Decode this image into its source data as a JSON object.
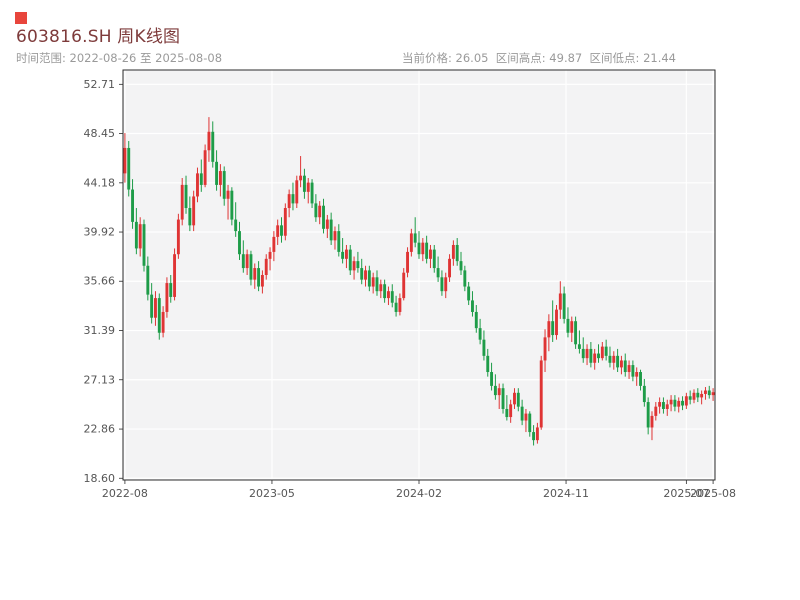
{
  "page": {
    "title": "603816.SH 周K线图",
    "subtitle_left": "时间范围: 2022-08-26 至 2025-08-08",
    "subtitle_right": "当前价格: 26.05  区间高点: 49.87  区间低点: 21.44"
  },
  "colors": {
    "up": "#df3434",
    "down": "#1e9c48",
    "plot_bg": "#f3f3f4",
    "grid": "#ffffff",
    "axis": "#2b2b2b",
    "tick_label": "#555555",
    "title": "#7e3b3b",
    "subtitle": "#9a9a9a",
    "marker": "#e8453c"
  },
  "chart_data": {
    "type": "candlestick",
    "title": "603816.SH 周K线图",
    "symbol": "603816.SH",
    "period": "weekly",
    "date_range": [
      "2022-08-26",
      "2025-08-08"
    ],
    "current_price": 26.05,
    "range_high": 49.87,
    "range_low": 21.44,
    "ylim": [
      18.45,
      53.95
    ],
    "grid": true,
    "y_ticks": [
      {
        "v": 52.71,
        "label": "52.71"
      },
      {
        "v": 48.45,
        "label": "48.45"
      },
      {
        "v": 44.18,
        "label": "44.18"
      },
      {
        "v": 39.92,
        "label": "39.92"
      },
      {
        "v": 35.66,
        "label": "35.66"
      },
      {
        "v": 31.39,
        "label": "31.39"
      },
      {
        "v": 27.13,
        "label": "27.13"
      },
      {
        "v": 22.86,
        "label": "22.86"
      },
      {
        "v": 18.6,
        "label": "18.60"
      }
    ],
    "x_ticks": [
      {
        "label": "2022-08",
        "week": 0
      },
      {
        "label": "2023-05",
        "week": 38.5
      },
      {
        "label": "2024-02",
        "week": 77
      },
      {
        "label": "2024-11",
        "week": 115.5
      },
      {
        "label": "2025-07",
        "week": 147
      },
      {
        "label": "2025-08",
        "week": 154
      }
    ],
    "candles": [
      [
        45.0,
        48.49,
        44.2,
        47.2
      ],
      [
        47.2,
        47.8,
        43.0,
        43.6
      ],
      [
        43.6,
        44.5,
        40.2,
        40.8
      ],
      [
        40.8,
        42.0,
        38.0,
        38.5
      ],
      [
        38.5,
        41.2,
        37.8,
        40.6
      ],
      [
        40.6,
        41.0,
        36.5,
        37.0
      ],
      [
        37.0,
        37.8,
        34.0,
        34.5
      ],
      [
        34.5,
        35.5,
        32.0,
        32.5
      ],
      [
        32.5,
        34.8,
        31.8,
        34.2
      ],
      [
        34.2,
        34.6,
        30.6,
        31.2
      ],
      [
        31.2,
        33.5,
        30.8,
        33.0
      ],
      [
        33.0,
        36.0,
        32.5,
        35.5
      ],
      [
        35.5,
        36.2,
        33.8,
        34.3
      ],
      [
        34.3,
        38.5,
        34.0,
        38.0
      ],
      [
        38.0,
        41.5,
        37.6,
        41.0
      ],
      [
        41.0,
        44.6,
        40.5,
        44.0
      ],
      [
        44.0,
        44.8,
        41.5,
        42.0
      ],
      [
        42.0,
        43.0,
        40.0,
        40.5
      ],
      [
        40.5,
        43.5,
        40.0,
        43.0
      ],
      [
        43.0,
        45.5,
        42.5,
        45.0
      ],
      [
        45.0,
        46.2,
        43.4,
        44.0
      ],
      [
        44.0,
        47.5,
        43.8,
        47.0
      ],
      [
        47.0,
        49.87,
        46.0,
        48.6
      ],
      [
        48.6,
        49.5,
        45.5,
        46.0
      ],
      [
        46.0,
        47.0,
        43.5,
        44.0
      ],
      [
        44.0,
        45.8,
        43.0,
        45.2
      ],
      [
        45.2,
        45.6,
        42.2,
        42.8
      ],
      [
        42.8,
        44.0,
        41.0,
        43.5
      ],
      [
        43.5,
        43.8,
        40.5,
        41.0
      ],
      [
        41.0,
        42.5,
        39.5,
        40.0
      ],
      [
        40.0,
        40.8,
        37.5,
        38.0
      ],
      [
        38.0,
        39.2,
        36.4,
        36.8
      ],
      [
        36.8,
        38.4,
        36.2,
        38.0
      ],
      [
        38.0,
        38.3,
        35.3,
        35.8
      ],
      [
        35.8,
        37.2,
        35.0,
        36.8
      ],
      [
        36.8,
        37.4,
        34.8,
        35.2
      ],
      [
        35.2,
        36.6,
        34.6,
        36.2
      ],
      [
        36.2,
        38.0,
        35.8,
        37.6
      ],
      [
        37.6,
        38.6,
        36.6,
        38.2
      ],
      [
        38.2,
        40.0,
        37.4,
        39.5
      ],
      [
        39.5,
        41.0,
        38.8,
        40.5
      ],
      [
        40.5,
        41.2,
        39.0,
        39.6
      ],
      [
        39.6,
        42.4,
        39.2,
        42.0
      ],
      [
        42.0,
        43.6,
        41.2,
        43.2
      ],
      [
        43.2,
        44.2,
        41.8,
        42.4
      ],
      [
        42.4,
        44.8,
        42.0,
        44.4
      ],
      [
        44.4,
        46.5,
        43.8,
        44.8
      ],
      [
        44.8,
        45.4,
        42.8,
        43.4
      ],
      [
        43.4,
        44.6,
        42.4,
        44.2
      ],
      [
        44.2,
        44.5,
        42.0,
        42.4
      ],
      [
        42.4,
        43.2,
        40.8,
        41.2
      ],
      [
        41.2,
        42.6,
        40.6,
        42.2
      ],
      [
        42.2,
        42.8,
        39.8,
        40.2
      ],
      [
        40.2,
        41.4,
        39.4,
        41.0
      ],
      [
        41.0,
        41.6,
        38.8,
        39.2
      ],
      [
        39.2,
        40.4,
        38.4,
        40.0
      ],
      [
        40.0,
        40.6,
        37.8,
        38.2
      ],
      [
        38.2,
        39.4,
        37.2,
        37.6
      ],
      [
        37.6,
        38.8,
        36.8,
        38.4
      ],
      [
        38.4,
        38.8,
        36.2,
        36.6
      ],
      [
        36.6,
        37.8,
        35.8,
        37.4
      ],
      [
        37.4,
        38.2,
        36.4,
        36.8
      ],
      [
        36.8,
        37.6,
        35.4,
        35.8
      ],
      [
        35.8,
        37.0,
        35.2,
        36.6
      ],
      [
        36.6,
        37.0,
        34.8,
        35.2
      ],
      [
        35.2,
        36.4,
        34.6,
        36.0
      ],
      [
        36.0,
        36.6,
        34.4,
        34.8
      ],
      [
        34.8,
        35.8,
        34.2,
        35.4
      ],
      [
        35.4,
        35.8,
        33.8,
        34.2
      ],
      [
        34.2,
        35.2,
        33.6,
        34.8
      ],
      [
        34.8,
        35.4,
        33.4,
        33.8
      ],
      [
        33.8,
        34.4,
        32.6,
        33.0
      ],
      [
        33.0,
        34.6,
        32.7,
        34.2
      ],
      [
        34.2,
        36.8,
        34.0,
        36.4
      ],
      [
        36.4,
        38.6,
        36.0,
        38.2
      ],
      [
        38.2,
        40.2,
        37.8,
        39.8
      ],
      [
        39.8,
        41.2,
        38.6,
        39.0
      ],
      [
        39.0,
        40.0,
        37.6,
        38.0
      ],
      [
        38.0,
        39.4,
        37.4,
        39.0
      ],
      [
        39.0,
        39.6,
        37.2,
        37.6
      ],
      [
        37.6,
        38.8,
        36.8,
        38.4
      ],
      [
        38.4,
        38.8,
        36.4,
        36.8
      ],
      [
        36.8,
        37.8,
        35.6,
        36.0
      ],
      [
        36.0,
        36.6,
        34.4,
        34.8
      ],
      [
        34.8,
        36.4,
        34.2,
        36.0
      ],
      [
        36.0,
        38.0,
        35.6,
        37.6
      ],
      [
        37.6,
        39.2,
        37.0,
        38.8
      ],
      [
        38.8,
        39.4,
        37.0,
        37.4
      ],
      [
        37.4,
        38.2,
        36.2,
        36.6
      ],
      [
        36.6,
        37.0,
        34.8,
        35.2
      ],
      [
        35.2,
        35.6,
        33.6,
        34.0
      ],
      [
        34.0,
        34.8,
        32.6,
        33.0
      ],
      [
        33.0,
        33.6,
        31.2,
        31.6
      ],
      [
        31.6,
        32.4,
        30.2,
        30.6
      ],
      [
        30.6,
        31.4,
        28.8,
        29.2
      ],
      [
        29.2,
        29.8,
        27.4,
        27.8
      ],
      [
        27.8,
        28.6,
        26.2,
        26.6
      ],
      [
        26.6,
        27.6,
        25.4,
        25.8
      ],
      [
        25.8,
        26.8,
        24.6,
        26.4
      ],
      [
        26.4,
        26.8,
        24.2,
        24.6
      ],
      [
        24.6,
        25.8,
        23.6,
        23.9
      ],
      [
        23.9,
        25.4,
        23.4,
        25.0
      ],
      [
        25.0,
        26.4,
        24.6,
        26.0
      ],
      [
        26.0,
        26.4,
        24.4,
        24.8
      ],
      [
        24.8,
        25.4,
        23.2,
        23.6
      ],
      [
        23.6,
        24.6,
        22.6,
        24.2
      ],
      [
        24.2,
        24.4,
        22.2,
        22.6
      ],
      [
        22.6,
        23.2,
        21.44,
        21.9
      ],
      [
        21.9,
        23.4,
        21.6,
        23.0
      ],
      [
        23.0,
        29.2,
        22.8,
        28.8
      ],
      [
        28.8,
        31.5,
        27.8,
        30.8
      ],
      [
        30.8,
        32.8,
        29.6,
        32.2
      ],
      [
        32.2,
        34.0,
        30.4,
        31.0
      ],
      [
        31.0,
        33.6,
        30.6,
        33.2
      ],
      [
        33.2,
        35.66,
        32.4,
        34.6
      ],
      [
        34.6,
        35.2,
        32.0,
        32.4
      ],
      [
        32.4,
        33.4,
        30.8,
        31.2
      ],
      [
        31.2,
        32.6,
        30.4,
        32.2
      ],
      [
        32.2,
        32.6,
        29.8,
        30.2
      ],
      [
        30.2,
        31.4,
        29.4,
        29.8
      ],
      [
        29.8,
        30.8,
        28.6,
        29.0
      ],
      [
        29.0,
        30.2,
        28.4,
        29.8
      ],
      [
        29.8,
        30.4,
        28.2,
        28.6
      ],
      [
        28.6,
        29.8,
        28.0,
        29.4
      ],
      [
        29.4,
        30.2,
        28.6,
        29.0
      ],
      [
        29.0,
        30.4,
        28.8,
        30.0
      ],
      [
        30.0,
        30.6,
        28.8,
        29.2
      ],
      [
        29.2,
        30.0,
        28.2,
        28.6
      ],
      [
        28.6,
        29.6,
        28.0,
        29.2
      ],
      [
        29.2,
        29.8,
        27.8,
        28.2
      ],
      [
        28.2,
        29.2,
        27.6,
        28.8
      ],
      [
        28.8,
        29.4,
        27.4,
        27.8
      ],
      [
        27.8,
        28.8,
        27.2,
        28.4
      ],
      [
        28.4,
        28.8,
        27.0,
        27.4
      ],
      [
        27.4,
        28.2,
        26.6,
        27.8
      ],
      [
        27.8,
        28.0,
        26.2,
        26.6
      ],
      [
        26.6,
        27.2,
        24.8,
        25.2
      ],
      [
        25.2,
        25.6,
        22.4,
        23.0
      ],
      [
        23.0,
        24.4,
        21.9,
        24.0
      ],
      [
        24.0,
        25.2,
        23.6,
        24.8
      ],
      [
        24.8,
        25.6,
        24.2,
        25.2
      ],
      [
        25.2,
        25.6,
        24.2,
        24.6
      ],
      [
        24.6,
        25.4,
        24.0,
        25.0
      ],
      [
        25.0,
        25.8,
        24.4,
        25.4
      ],
      [
        25.4,
        25.8,
        24.4,
        24.8
      ],
      [
        24.8,
        25.6,
        24.3,
        25.3
      ],
      [
        25.3,
        25.7,
        24.5,
        24.9
      ],
      [
        24.9,
        26.0,
        24.6,
        25.7
      ],
      [
        25.7,
        26.2,
        25.0,
        25.4
      ],
      [
        25.4,
        26.3,
        25.1,
        26.0
      ],
      [
        26.0,
        26.4,
        25.2,
        25.6
      ],
      [
        25.6,
        26.2,
        25.0,
        25.9
      ],
      [
        25.9,
        26.5,
        25.4,
        26.2
      ],
      [
        26.2,
        26.6,
        25.5,
        25.8
      ],
      [
        25.8,
        26.4,
        25.3,
        26.05
      ]
    ]
  }
}
